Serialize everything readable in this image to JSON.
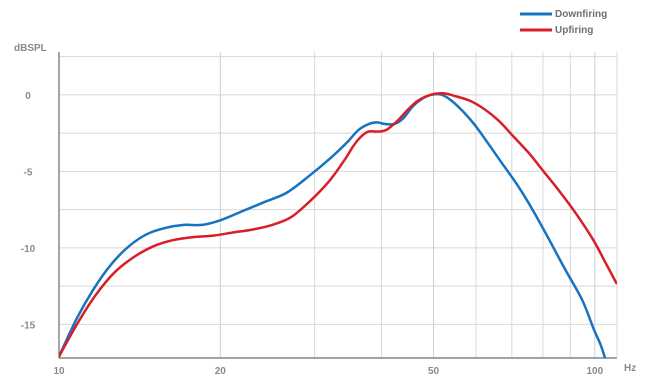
{
  "chart_data": {
    "type": "line",
    "xlabel": "Hz",
    "ylabel": "dBSPL",
    "x_scale": "log",
    "xlim": [
      10,
      110
    ],
    "ylim": [
      -17.2,
      2.8
    ],
    "x_ticks": [
      {
        "value": 10,
        "label": "10"
      },
      {
        "value": 20,
        "label": "20"
      },
      {
        "value": 50,
        "label": "50"
      },
      {
        "value": 100,
        "label": "100"
      }
    ],
    "x_minor_gridlines": [
      30,
      40,
      60,
      70,
      80,
      90
    ],
    "y_ticks": [
      {
        "value": 0,
        "label": "0"
      },
      {
        "value": -5,
        "label": "-5"
      },
      {
        "value": -10,
        "label": "-10"
      },
      {
        "value": -15,
        "label": "-15"
      }
    ],
    "y_minor_gridlines": [
      2.5,
      -2.5,
      -7.5,
      -12.5
    ],
    "grid": true,
    "legend_position": "top-right",
    "series": [
      {
        "name": "Downfiring",
        "color": "#1673c2",
        "x": [
          10,
          10.8,
          11.6,
          12.5,
          13.5,
          14.6,
          15.8,
          17.1,
          18.5,
          20,
          22,
          24.2,
          26.6,
          29.3,
          32.2,
          34.5,
          36.2,
          37.9,
          39.2,
          40.5,
          42.3,
          44,
          45.6,
          47.4,
          49.5,
          51.8,
          54.1,
          56.8,
          59.8,
          63.3,
          67.2,
          71.7,
          76.5,
          82,
          88,
          94.7,
          99.5,
          102.7,
          105.3
        ],
        "y": [
          -17.1,
          -14.6,
          -12.7,
          -11.1,
          -9.9,
          -9.1,
          -8.7,
          -8.5,
          -8.5,
          -8.2,
          -7.6,
          -7.0,
          -6.4,
          -5.3,
          -4.1,
          -3.1,
          -2.3,
          -1.9,
          -1.8,
          -1.9,
          -1.9,
          -1.5,
          -0.8,
          -0.3,
          0.0,
          0.0,
          -0.4,
          -1.1,
          -2.0,
          -3.2,
          -4.5,
          -5.9,
          -7.5,
          -9.4,
          -11.4,
          -13.4,
          -15.3,
          -16.4,
          -17.6
        ]
      },
      {
        "name": "Upfiring",
        "color": "#d81e27",
        "x": [
          10,
          10.8,
          11.7,
          12.7,
          13.8,
          15,
          16.3,
          17.8,
          19.4,
          21.1,
          23,
          25,
          27.1,
          29.5,
          32,
          34.2,
          35.5,
          36.7,
          37.8,
          39.2,
          40.8,
          42.8,
          44.7,
          46.7,
          49.4,
          52.1,
          55.1,
          58.6,
          62,
          66.2,
          70.4,
          75.3,
          80.2,
          85.9,
          92.4,
          99.4,
          104.8,
          109.7
        ],
        "y": [
          -17.1,
          -15.0,
          -13.1,
          -11.6,
          -10.6,
          -9.9,
          -9.5,
          -9.3,
          -9.2,
          -9.0,
          -8.8,
          -8.5,
          -8.0,
          -6.9,
          -5.6,
          -4.2,
          -3.3,
          -2.7,
          -2.4,
          -2.4,
          -2.3,
          -1.7,
          -1.0,
          -0.4,
          0.0,
          0.1,
          -0.1,
          -0.4,
          -0.9,
          -1.7,
          -2.7,
          -3.8,
          -5.0,
          -6.3,
          -7.8,
          -9.5,
          -11.0,
          -12.3
        ]
      }
    ]
  }
}
